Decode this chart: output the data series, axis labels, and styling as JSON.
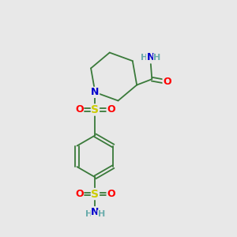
{
  "bg_color": "#e8e8e8",
  "atom_colors": {
    "C": "#3a7a3a",
    "N": "#0000cc",
    "O": "#ff0000",
    "S": "#cccc00",
    "H": "#6aacac"
  },
  "bond_color": "#3a7a3a",
  "lw": 1.3
}
